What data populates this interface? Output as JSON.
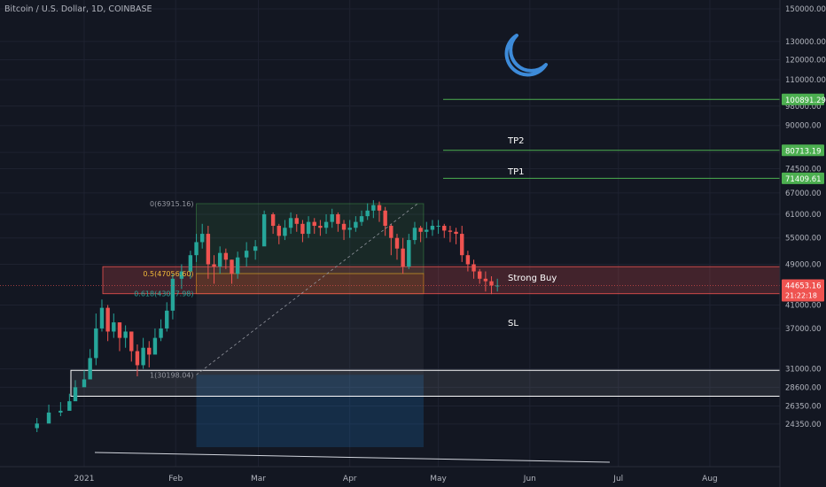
{
  "header": {
    "title": "Bitcoin / U.S. Dollar, 1D, COINBASE"
  },
  "colors": {
    "background": "#131722",
    "text": "#b2b5be",
    "bull": "#26a69a",
    "bear": "#ef5350",
    "grid": "#1e2230",
    "tp_line": "#4caf50",
    "moon": "#3d8bd9"
  },
  "icons": {
    "logo": "crescent-moon-icon"
  },
  "chart_data": {
    "type": "candlestick",
    "title": "Bitcoin / U.S. Dollar, 1D, COINBASE",
    "y_scale": "log",
    "ylim": [
      22000,
      150000
    ],
    "x_range_days": [
      -32,
      252
    ],
    "y_ticks": [
      "150000.00",
      "130000.00",
      "120000.00",
      "110000.00",
      "98000.00",
      "90000.00",
      "80000.00",
      "74500.00",
      "67000.00",
      "61000.00",
      "55000.00",
      "49000.00",
      "41000.00",
      "37000.00",
      "31000.00",
      "28600.00",
      "26350.00",
      "24350.00"
    ],
    "y_tick_values": [
      150000,
      130000,
      120000,
      110000,
      98000,
      90000,
      80000,
      74500,
      67000,
      61000,
      55000,
      49000,
      41000,
      37000,
      31000,
      28600,
      26350,
      24350
    ],
    "x_ticks": [
      {
        "label": "2021",
        "day": 0
      },
      {
        "label": "Feb",
        "day": 31
      },
      {
        "label": "Mar",
        "day": 59
      },
      {
        "label": "Apr",
        "day": 90
      },
      {
        "label": "May",
        "day": 120
      },
      {
        "label": "Jun",
        "day": 151
      },
      {
        "label": "Jul",
        "day": 181
      },
      {
        "label": "Aug",
        "day": 212
      }
    ],
    "close_series": {
      "days": [
        -16,
        -12,
        -8,
        -5,
        -3,
        0,
        2,
        4,
        6,
        8,
        10,
        12,
        14,
        16,
        18,
        20,
        22,
        24,
        26,
        28,
        30,
        33,
        36,
        38,
        40,
        42,
        44,
        46,
        48,
        50,
        52,
        55,
        58,
        61,
        64,
        66,
        68,
        70,
        72,
        74,
        76,
        78,
        80,
        82,
        84,
        86,
        88,
        90,
        92,
        94,
        96,
        98,
        100,
        102,
        104,
        106,
        108,
        110,
        112,
        114,
        116,
        118,
        120,
        122,
        124,
        126,
        128,
        130,
        132,
        134,
        136,
        138,
        140
      ],
      "values": [
        24400,
        25600,
        25800,
        26900,
        28600,
        29600,
        32500,
        37000,
        40500,
        36500,
        38000,
        35500,
        36500,
        33500,
        31500,
        34000,
        33000,
        35500,
        37000,
        40000,
        46000,
        47500,
        51000,
        54000,
        56000,
        49000,
        48500,
        51500,
        50000,
        47000,
        50500,
        52000,
        53000,
        61000,
        58000,
        55500,
        57500,
        60000,
        58500,
        56000,
        59000,
        58000,
        57500,
        59000,
        61000,
        58500,
        57000,
        57500,
        59000,
        60500,
        62000,
        63500,
        62000,
        58000,
        55000,
        52500,
        48500,
        54500,
        57500,
        56500,
        57000,
        58000,
        58000,
        56800,
        56500,
        56000,
        51000,
        49000,
        47500,
        46000,
        45500,
        44650,
        44653
      ],
      "range": [
        [
          23500,
          25000
        ],
        [
          25000,
          26500
        ],
        [
          25200,
          26800
        ],
        [
          26000,
          27800
        ],
        [
          27800,
          29500
        ],
        [
          28800,
          30800
        ],
        [
          29800,
          33800
        ],
        [
          31500,
          39500
        ],
        [
          36500,
          42000
        ],
        [
          35000,
          41000
        ],
        [
          35500,
          39500
        ],
        [
          33500,
          38000
        ],
        [
          34000,
          37500
        ],
        [
          32000,
          36000
        ],
        [
          30000,
          34500
        ],
        [
          31000,
          35500
        ],
        [
          31200,
          35000
        ],
        [
          33500,
          37000
        ],
        [
          35000,
          38500
        ],
        [
          36500,
          41500
        ],
        [
          38500,
          47000
        ],
        [
          44000,
          49000
        ],
        [
          46000,
          52000
        ],
        [
          49500,
          56000
        ],
        [
          52500,
          58500
        ],
        [
          46000,
          58000
        ],
        [
          45000,
          51000
        ],
        [
          47000,
          53000
        ],
        [
          48000,
          52500
        ],
        [
          45000,
          50000
        ],
        [
          46000,
          51800
        ],
        [
          48500,
          54000
        ],
        [
          50000,
          54500
        ],
        [
          55000,
          62000
        ],
        [
          56000,
          61500
        ],
        [
          53500,
          58500
        ],
        [
          54500,
          59500
        ],
        [
          56000,
          61500
        ],
        [
          56500,
          61000
        ],
        [
          54000,
          59500
        ],
        [
          55000,
          60500
        ],
        [
          56000,
          60000
        ],
        [
          55500,
          59500
        ],
        [
          56000,
          61000
        ],
        [
          57500,
          62500
        ],
        [
          56500,
          61500
        ],
        [
          54500,
          59500
        ],
        [
          55000,
          59500
        ],
        [
          56500,
          60500
        ],
        [
          58000,
          62000
        ],
        [
          59500,
          64000
        ],
        [
          60000,
          64895
        ],
        [
          59000,
          64500
        ],
        [
          55500,
          63000
        ],
        [
          51000,
          58500
        ],
        [
          50000,
          56000
        ],
        [
          47000,
          55000
        ],
        [
          48000,
          56000
        ],
        [
          53500,
          59000
        ],
        [
          54000,
          58000
        ],
        [
          55000,
          59000
        ],
        [
          55500,
          59500
        ],
        [
          56000,
          59500
        ],
        [
          55000,
          58500
        ],
        [
          54000,
          58000
        ],
        [
          53500,
          57500
        ],
        [
          49500,
          58000
        ],
        [
          47500,
          52000
        ],
        [
          46000,
          50000
        ],
        [
          45000,
          48000
        ],
        [
          43500,
          47500
        ],
        [
          43000,
          46500
        ],
        [
          43500,
          46000
        ]
      ]
    },
    "fib_levels": [
      {
        "ratio": "0",
        "label": "0(63915.16)",
        "value": 63915.16
      },
      {
        "ratio": "0.5",
        "label": "0.5(47056.60)",
        "value": 47056.6
      },
      {
        "ratio": "0.618",
        "label": "0.618(43077.98)",
        "value": 43077.98
      },
      {
        "ratio": "1",
        "label": "1(30198.04)",
        "value": 30198.04
      }
    ],
    "target_lines": [
      {
        "value": 100891.29,
        "label": "100891.29"
      },
      {
        "value": 80713.19,
        "label": "80713.19"
      },
      {
        "value": 71409.61,
        "label": "71409.61"
      }
    ],
    "annotations": {
      "tp2": "TP2",
      "tp1": "TP1",
      "strong_buy": "Strong Buy",
      "sl": "SL"
    },
    "zones": [
      {
        "name": "strong-buy-zone",
        "from": 43077.98,
        "to": 48500
      },
      {
        "name": "support-zone",
        "from": 27500,
        "to": 30800
      }
    ],
    "price_tag": {
      "value": 44653.16,
      "label": "44653.16",
      "countdown": "21:22:18"
    }
  }
}
